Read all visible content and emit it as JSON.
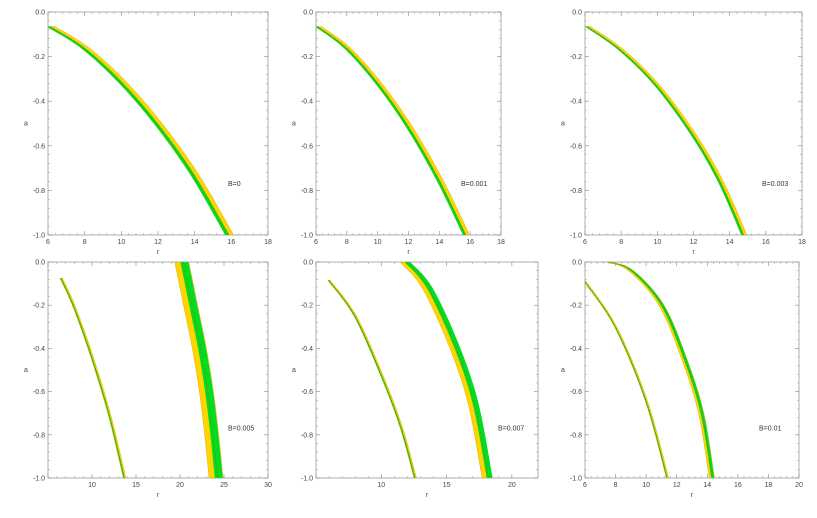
{
  "colors": {
    "band_outer": "#ffd400",
    "band_inner": "#00dd22",
    "band_line": "#d4a300",
    "guide_dash": "#ff3300",
    "frame": "#999999"
  },
  "chart_data": [
    {
      "type": "line",
      "xlabel": "r",
      "ylabel": "a",
      "annotation": "B=0",
      "xlim": [
        6,
        18
      ],
      "ylim": [
        -1.0,
        0.0
      ],
      "xticks": [
        6,
        8,
        10,
        12,
        14,
        16,
        18
      ],
      "yticks": [
        0.0,
        -0.2,
        -0.4,
        -0.6,
        -0.8,
        -1.0
      ],
      "xtick_labels": [
        "6",
        "8",
        "10",
        "12",
        "14",
        "16",
        "18"
      ],
      "ytick_labels": [
        "0.0",
        "-0.2",
        "-0.4",
        "-0.6",
        "-0.8",
        "-1.0"
      ],
      "grid": false,
      "series": [
        {
          "kind": "band",
          "points": [
            [
              6.15,
              -0.065
            ],
            [
              8.0,
              -0.16
            ],
            [
              10.0,
              -0.31
            ],
            [
              12.0,
              -0.5
            ],
            [
              14.0,
              -0.73
            ],
            [
              15.9,
              -1.0
            ]
          ],
          "outer_width": 0.45,
          "inner_width": 0.22,
          "inner_offset": -0.12
        }
      ]
    },
    {
      "type": "line",
      "xlabel": "r",
      "ylabel": "a",
      "annotation": "B=0.001",
      "xlim": [
        6,
        18
      ],
      "ylim": [
        -1.0,
        0.0
      ],
      "xticks": [
        6,
        8,
        10,
        12,
        14,
        16,
        18
      ],
      "yticks": [
        0.0,
        -0.2,
        -0.4,
        -0.6,
        -0.8,
        -1.0
      ],
      "xtick_labels": [
        "6",
        "8",
        "10",
        "12",
        "14",
        "16",
        "18"
      ],
      "ytick_labels": [
        "0.0",
        "-0.2",
        "-0.4",
        "-0.6",
        "-0.8",
        "-1.0"
      ],
      "grid": false,
      "series": [
        {
          "kind": "band",
          "points": [
            [
              6.15,
              -0.065
            ],
            [
              8.0,
              -0.16
            ],
            [
              10.0,
              -0.315
            ],
            [
              12.0,
              -0.51
            ],
            [
              14.0,
              -0.75
            ],
            [
              15.75,
              -1.0
            ]
          ],
          "outer_width": 0.42,
          "inner_width": 0.2,
          "inner_offset": -0.11
        }
      ]
    },
    {
      "type": "line",
      "xlabel": "r",
      "ylabel": "a",
      "annotation": "B=0.003",
      "xlim": [
        6,
        18
      ],
      "ylim": [
        -1.0,
        0.0
      ],
      "xticks": [
        6,
        8,
        10,
        12,
        14,
        16,
        18
      ],
      "yticks": [
        0.0,
        -0.2,
        -0.4,
        -0.6,
        -0.8,
        -1.0
      ],
      "xtick_labels": [
        "6",
        "8",
        "10",
        "12",
        "14",
        "16",
        "18"
      ],
      "ytick_labels": [
        "0.0",
        "-0.2",
        "-0.4",
        "-0.6",
        "-0.8",
        "-1.0"
      ],
      "grid": false,
      "series": [
        {
          "kind": "band",
          "points": [
            [
              6.15,
              -0.065
            ],
            [
              8.0,
              -0.17
            ],
            [
              10.0,
              -0.33
            ],
            [
              12.0,
              -0.55
            ],
            [
              13.5,
              -0.76
            ],
            [
              14.8,
              -1.0
            ]
          ],
          "outer_width": 0.3,
          "inner_width": 0.15,
          "inner_offset": -0.08
        }
      ]
    },
    {
      "type": "line",
      "xlabel": "r",
      "ylabel": "a",
      "annotation": "B=0.005",
      "xlim": [
        5,
        30
      ],
      "ylim": [
        -1.0,
        0.0
      ],
      "xticks": [
        5,
        10,
        15,
        20,
        25,
        30
      ],
      "yticks": [
        0.0,
        -0.2,
        -0.4,
        -0.6,
        -0.8,
        -1.0
      ],
      "xtick_labels": [
        "",
        "10",
        "15",
        "20",
        "25",
        "30"
      ],
      "ytick_labels": [
        "0.0",
        "-0.2",
        "-0.4",
        "-0.6",
        "-0.8",
        "-1.0"
      ],
      "grid": false,
      "series": [
        {
          "kind": "band",
          "points": [
            [
              6.5,
              -0.075
            ],
            [
              8.0,
              -0.21
            ],
            [
              10.0,
              -0.44
            ],
            [
              12.0,
              -0.71
            ],
            [
              13.7,
              -1.0
            ]
          ],
          "outer_width": 0.3,
          "inner_width": 0.14,
          "inner_offset": -0.05
        },
        {
          "kind": "band",
          "points": [
            [
              20.2,
              0.0
            ],
            [
              21.2,
              -0.2
            ],
            [
              22.2,
              -0.4
            ],
            [
              23.0,
              -0.6
            ],
            [
              23.6,
              -0.8
            ],
            [
              24.1,
              -1.0
            ]
          ],
          "outer_width": 1.6,
          "inner_width": 0.9,
          "inner_offset": 0.3
        }
      ]
    },
    {
      "type": "line",
      "xlabel": "r",
      "ylabel": "a",
      "annotation": "B=0.007",
      "xlim": [
        5,
        22
      ],
      "ylim": [
        -1.0,
        0.0
      ],
      "xticks": [
        5,
        10,
        15,
        20
      ],
      "yticks": [
        0.0,
        -0.2,
        -0.4,
        -0.6,
        -0.8,
        -1.0
      ],
      "xtick_labels": [
        "",
        "10",
        "15",
        "20"
      ],
      "ytick_labels": [
        "0.0",
        "-0.2",
        "-0.4",
        "-0.6",
        "-0.8",
        "-1.0"
      ],
      "grid": false,
      "series": [
        {
          "kind": "band",
          "points": [
            [
              6.0,
              -0.085
            ],
            [
              8.0,
              -0.25
            ],
            [
              10.0,
              -0.52
            ],
            [
              11.5,
              -0.76
            ],
            [
              12.6,
              -1.0
            ]
          ],
          "outer_width": 0.2,
          "inner_width": 0.1,
          "inner_offset": -0.04
        },
        {
          "kind": "band",
          "points": [
            [
              11.8,
              0.0
            ],
            [
              13.5,
              -0.12
            ],
            [
              15.5,
              -0.38
            ],
            [
              17.0,
              -0.65
            ],
            [
              18.1,
              -1.0
            ]
          ],
          "outer_width": 0.75,
          "inner_width": 0.45,
          "inner_offset": 0.2
        }
      ]
    },
    {
      "type": "line",
      "xlabel": "r",
      "ylabel": "a",
      "annotation": "B=0.01",
      "xlim": [
        6,
        20
      ],
      "ylim": [
        -1.0,
        0.0
      ],
      "xticks": [
        6,
        8,
        10,
        12,
        14,
        16,
        18,
        20
      ],
      "yticks": [
        0.0,
        -0.2,
        -0.4,
        -0.6,
        -0.8,
        -1.0
      ],
      "xtick_labels": [
        "6",
        "8",
        "10",
        "12",
        "14",
        "16",
        "18",
        "20"
      ],
      "ytick_labels": [
        "0.0",
        "-0.2",
        "-0.4",
        "-0.6",
        "-0.8",
        "-1.0"
      ],
      "grid": false,
      "series": [
        {
          "kind": "band",
          "points": [
            [
              6.0,
              -0.09
            ],
            [
              8.0,
              -0.3
            ],
            [
              10.0,
              -0.64
            ],
            [
              11.4,
              -1.0
            ]
          ],
          "outer_width": 0.15,
          "inner_width": 0.07,
          "inner_offset": -0.03
        },
        {
          "kind": "band",
          "points": [
            [
              7.5,
              0.0
            ],
            [
              9.0,
              -0.04
            ],
            [
              11.0,
              -0.2
            ],
            [
              12.5,
              -0.45
            ],
            [
              13.6,
              -0.7
            ],
            [
              14.3,
              -1.0
            ]
          ],
          "outer_width": 0.35,
          "inner_width": 0.2,
          "inner_offset": 0.06
        }
      ]
    }
  ]
}
